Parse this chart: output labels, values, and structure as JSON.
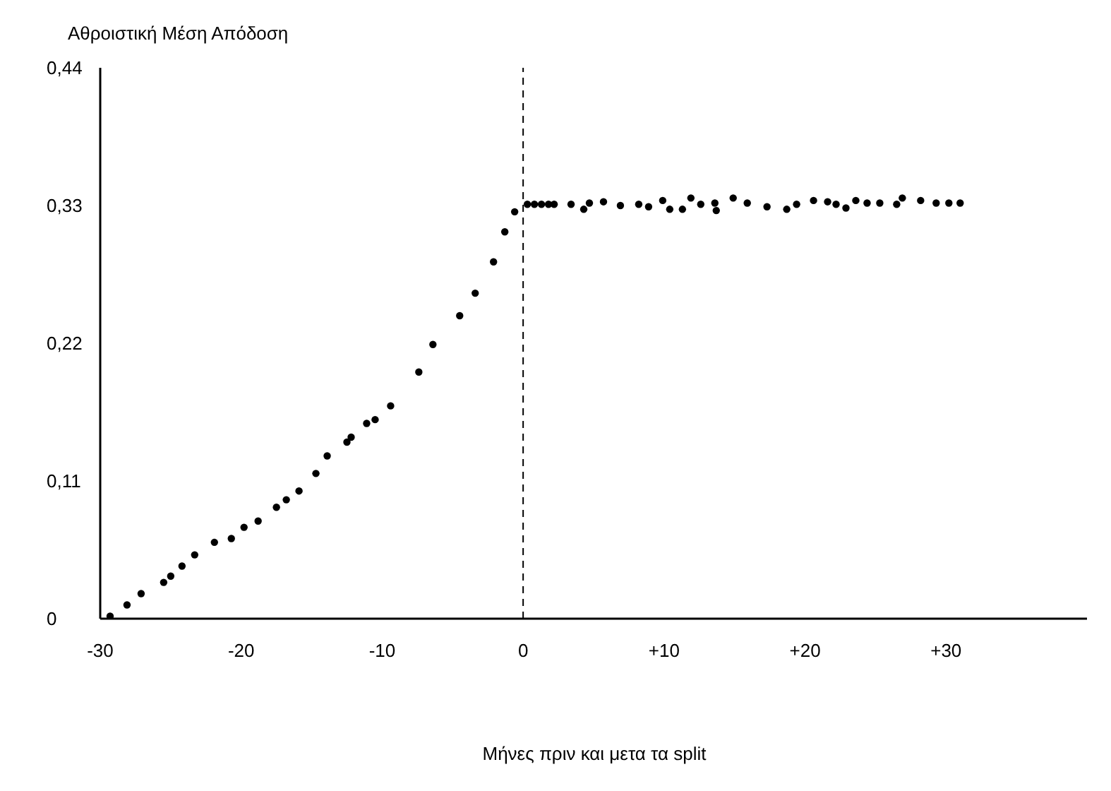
{
  "chart_data": {
    "type": "scatter",
    "ylabel": "Αθροιστική Μέση Απόδοση",
    "xlabel": "Μήνες πριν και μετα τα split",
    "marker": "circle",
    "grid": false,
    "legend": false,
    "x": [
      -29.3,
      -28.1,
      -27.1,
      -25.5,
      -25.0,
      -24.2,
      -23.3,
      -21.9,
      -20.7,
      -19.8,
      -18.8,
      -17.5,
      -16.8,
      -15.9,
      -14.7,
      -13.9,
      -12.5,
      -12.2,
      -11.1,
      -10.5,
      -9.4,
      -7.4,
      -6.4,
      -4.5,
      -3.4,
      -2.1,
      -1.3,
      -0.6,
      0.3,
      0.8,
      1.3,
      1.8,
      2.2,
      3.4,
      4.3,
      4.7,
      5.7,
      6.9,
      8.2,
      8.9,
      9.9,
      10.4,
      11.3,
      11.9,
      12.6,
      13.6,
      13.7,
      14.9,
      15.9,
      17.3,
      18.7,
      19.4,
      20.6,
      21.6,
      22.2,
      22.9,
      23.6,
      24.4,
      25.3,
      26.5,
      26.9,
      28.2,
      29.3,
      30.2,
      31.0
    ],
    "series": [
      {
        "color": "#000000",
        "values": [
          0.002,
          0.011,
          0.02,
          0.029,
          0.034,
          0.042,
          0.051,
          0.061,
          0.064,
          0.073,
          0.078,
          0.089,
          0.095,
          0.102,
          0.116,
          0.13,
          0.141,
          0.145,
          0.156,
          0.159,
          0.17,
          0.197,
          0.219,
          0.242,
          0.26,
          0.285,
          0.309,
          0.325,
          0.331,
          0.331,
          0.331,
          0.331,
          0.331,
          0.331,
          0.327,
          0.332,
          0.333,
          0.33,
          0.331,
          0.329,
          0.334,
          0.327,
          0.327,
          0.336,
          0.331,
          0.332,
          0.326,
          0.336,
          0.332,
          0.329,
          0.327,
          0.331,
          0.334,
          0.333,
          0.331,
          0.328,
          0.334,
          0.332,
          0.332,
          0.331,
          0.336,
          0.334,
          0.332,
          0.332,
          0.332
        ]
      }
    ],
    "xlim": [
      -30,
      40
    ],
    "xticks": [
      -30,
      -20,
      -10,
      0,
      {
        "value": 10,
        "label": "+10"
      },
      {
        "value": 20,
        "label": "+20"
      },
      {
        "value": 30,
        "label": "+30"
      }
    ],
    "ylim": [
      0,
      0.44
    ],
    "yticks": [
      {
        "value": 0,
        "label": "0"
      },
      {
        "value": 0.11,
        "label": "0,11"
      },
      {
        "value": 0.22,
        "label": "0,22"
      },
      {
        "value": 0.33,
        "label": "0,33"
      },
      {
        "value": 0.44,
        "label": "0,44"
      }
    ],
    "ref_lines": [
      {
        "axis": "x",
        "value": 0,
        "color": "#000000",
        "line_style": "dashed"
      }
    ]
  }
}
